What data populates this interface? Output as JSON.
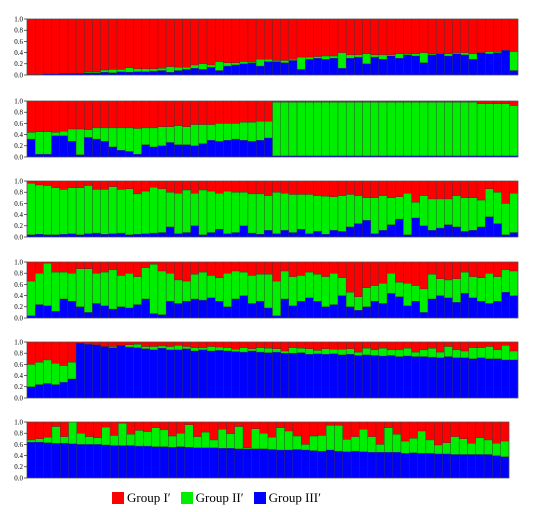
{
  "chart_data": {
    "type": "bar",
    "stacked": true,
    "normalized": true,
    "ylim": [
      0,
      1
    ],
    "yticks": [
      "0.0",
      "0.2",
      "0.4",
      "0.6",
      "0.8",
      "1.0"
    ],
    "colors": {
      "blue": "#0000ff",
      "green": "#00ee00",
      "red": "#ff0000"
    },
    "legend": [
      {
        "label": "Group I′",
        "color": "#ff0000"
      },
      {
        "label": "Group II′",
        "color": "#00ee00"
      },
      {
        "label": "Group III′",
        "color": "#0000ff"
      }
    ],
    "series_order": [
      "blue",
      "green",
      "red"
    ],
    "panels": [
      {
        "blue": [
          0.01,
          0.01,
          0.02,
          0.02,
          0.03,
          0.03,
          0.03,
          0.04,
          0.04,
          0.05,
          0.04,
          0.06,
          0.05,
          0.06,
          0.06,
          0.07,
          0.08,
          0.05,
          0.08,
          0.1,
          0.12,
          0.1,
          0.14,
          0.08,
          0.16,
          0.18,
          0.2,
          0.22,
          0.16,
          0.24,
          0.24,
          0.22,
          0.26,
          0.1,
          0.28,
          0.3,
          0.28,
          0.3,
          0.12,
          0.3,
          0.32,
          0.2,
          0.32,
          0.28,
          0.34,
          0.3,
          0.36,
          0.34,
          0.22,
          0.36,
          0.38,
          0.34,
          0.38,
          0.36,
          0.28,
          0.4,
          0.38,
          0.4,
          0.44,
          0.08
        ],
        "green": [
          0.0,
          0.0,
          0.0,
          0.0,
          0.0,
          0.0,
          0.0,
          0.02,
          0.02,
          0.04,
          0.06,
          0.04,
          0.08,
          0.05,
          0.05,
          0.04,
          0.04,
          0.1,
          0.06,
          0.04,
          0.06,
          0.1,
          0.04,
          0.16,
          0.06,
          0.04,
          0.04,
          0.02,
          0.12,
          0.04,
          0.02,
          0.04,
          0.02,
          0.22,
          0.04,
          0.03,
          0.06,
          0.04,
          0.28,
          0.06,
          0.04,
          0.18,
          0.04,
          0.08,
          0.02,
          0.08,
          0.02,
          0.04,
          0.18,
          0.02,
          0.0,
          0.04,
          0.02,
          0.04,
          0.1,
          0.0,
          0.04,
          0.02,
          0.0,
          0.34
        ]
      },
      {
        "blue": [
          0.32,
          0.05,
          0.05,
          0.38,
          0.38,
          0.28,
          0.04,
          0.35,
          0.32,
          0.28,
          0.18,
          0.12,
          0.1,
          0.05,
          0.22,
          0.18,
          0.2,
          0.26,
          0.22,
          0.22,
          0.2,
          0.24,
          0.3,
          0.28,
          0.3,
          0.32,
          0.3,
          0.28,
          0.3,
          0.34,
          0.02,
          0.02,
          0.02,
          0.02,
          0.02,
          0.02,
          0.02,
          0.02,
          0.02,
          0.02,
          0.02,
          0.02,
          0.02,
          0.02,
          0.02,
          0.02,
          0.02,
          0.02,
          0.02,
          0.02,
          0.02,
          0.02,
          0.02,
          0.02,
          0.02,
          0.02,
          0.02,
          0.02,
          0.02,
          0.02
        ],
        "green": [
          0.12,
          0.4,
          0.4,
          0.06,
          0.08,
          0.22,
          0.46,
          0.14,
          0.2,
          0.24,
          0.34,
          0.4,
          0.42,
          0.46,
          0.3,
          0.34,
          0.34,
          0.28,
          0.34,
          0.32,
          0.38,
          0.34,
          0.28,
          0.32,
          0.3,
          0.28,
          0.32,
          0.34,
          0.34,
          0.3,
          0.96,
          0.96,
          0.96,
          0.96,
          0.96,
          0.96,
          0.96,
          0.96,
          0.96,
          0.96,
          0.96,
          0.96,
          0.96,
          0.96,
          0.96,
          0.96,
          0.96,
          0.96,
          0.96,
          0.96,
          0.96,
          0.96,
          0.96,
          0.96,
          0.96,
          0.93,
          0.93,
          0.93,
          0.93,
          0.9
        ]
      },
      {
        "blue": [
          0.04,
          0.05,
          0.04,
          0.04,
          0.05,
          0.06,
          0.04,
          0.06,
          0.07,
          0.05,
          0.06,
          0.07,
          0.04,
          0.05,
          0.06,
          0.07,
          0.08,
          0.18,
          0.06,
          0.08,
          0.2,
          0.04,
          0.08,
          0.14,
          0.06,
          0.08,
          0.2,
          0.07,
          0.05,
          0.12,
          0.06,
          0.12,
          0.08,
          0.14,
          0.06,
          0.1,
          0.05,
          0.12,
          0.1,
          0.18,
          0.24,
          0.3,
          0.06,
          0.12,
          0.22,
          0.32,
          0.04,
          0.34,
          0.2,
          0.12,
          0.16,
          0.22,
          0.18,
          0.1,
          0.12,
          0.18,
          0.36,
          0.24,
          0.04,
          0.08
        ],
        "green": [
          0.92,
          0.88,
          0.88,
          0.84,
          0.8,
          0.82,
          0.84,
          0.86,
          0.78,
          0.8,
          0.84,
          0.78,
          0.82,
          0.72,
          0.76,
          0.82,
          0.78,
          0.62,
          0.72,
          0.76,
          0.58,
          0.8,
          0.74,
          0.64,
          0.76,
          0.72,
          0.6,
          0.7,
          0.72,
          0.62,
          0.74,
          0.66,
          0.68,
          0.62,
          0.7,
          0.64,
          0.68,
          0.6,
          0.64,
          0.58,
          0.5,
          0.4,
          0.64,
          0.62,
          0.48,
          0.4,
          0.74,
          0.28,
          0.54,
          0.56,
          0.52,
          0.46,
          0.56,
          0.6,
          0.58,
          0.48,
          0.5,
          0.56,
          0.56,
          0.7
        ]
      },
      {
        "blue": [
          0.04,
          0.24,
          0.22,
          0.12,
          0.34,
          0.3,
          0.2,
          0.1,
          0.26,
          0.22,
          0.16,
          0.2,
          0.18,
          0.24,
          0.34,
          0.08,
          0.06,
          0.3,
          0.26,
          0.3,
          0.34,
          0.32,
          0.36,
          0.3,
          0.2,
          0.34,
          0.4,
          0.26,
          0.3,
          0.18,
          0.04,
          0.34,
          0.22,
          0.3,
          0.36,
          0.3,
          0.2,
          0.24,
          0.4,
          0.2,
          0.14,
          0.2,
          0.3,
          0.26,
          0.44,
          0.38,
          0.22,
          0.3,
          0.1,
          0.34,
          0.4,
          0.36,
          0.28,
          0.44,
          0.36,
          0.3,
          0.26,
          0.3,
          0.46,
          0.4
        ],
        "green": [
          0.62,
          0.56,
          0.76,
          0.7,
          0.48,
          0.5,
          0.68,
          0.78,
          0.54,
          0.6,
          0.7,
          0.56,
          0.62,
          0.5,
          0.56,
          0.88,
          0.78,
          0.5,
          0.42,
          0.36,
          0.44,
          0.5,
          0.4,
          0.42,
          0.6,
          0.5,
          0.42,
          0.5,
          0.48,
          0.6,
          0.62,
          0.5,
          0.52,
          0.46,
          0.46,
          0.48,
          0.54,
          0.56,
          0.32,
          0.26,
          0.24,
          0.34,
          0.28,
          0.36,
          0.36,
          0.26,
          0.4,
          0.28,
          0.42,
          0.44,
          0.3,
          0.32,
          0.42,
          0.38,
          0.38,
          0.42,
          0.54,
          0.44,
          0.4,
          0.44
        ]
      },
      {
        "blue": [
          0.2,
          0.24,
          0.26,
          0.24,
          0.28,
          0.34,
          0.98,
          0.96,
          0.95,
          0.92,
          0.9,
          0.94,
          0.91,
          0.9,
          0.88,
          0.86,
          0.89,
          0.86,
          0.86,
          0.88,
          0.84,
          0.86,
          0.84,
          0.85,
          0.84,
          0.83,
          0.82,
          0.84,
          0.82,
          0.81,
          0.82,
          0.8,
          0.8,
          0.81,
          0.78,
          0.79,
          0.78,
          0.79,
          0.77,
          0.78,
          0.76,
          0.77,
          0.76,
          0.75,
          0.76,
          0.74,
          0.75,
          0.74,
          0.74,
          0.73,
          0.72,
          0.74,
          0.72,
          0.72,
          0.7,
          0.72,
          0.7,
          0.7,
          0.68,
          0.68
        ],
        "green": [
          0.4,
          0.4,
          0.42,
          0.38,
          0.3,
          0.3,
          0.0,
          0.0,
          0.0,
          0.0,
          0.02,
          0.0,
          0.04,
          0.06,
          0.04,
          0.06,
          0.04,
          0.06,
          0.08,
          0.04,
          0.06,
          0.04,
          0.08,
          0.06,
          0.06,
          0.04,
          0.08,
          0.04,
          0.08,
          0.08,
          0.06,
          0.04,
          0.1,
          0.08,
          0.1,
          0.06,
          0.1,
          0.08,
          0.1,
          0.1,
          0.06,
          0.12,
          0.1,
          0.14,
          0.1,
          0.12,
          0.14,
          0.08,
          0.12,
          0.16,
          0.1,
          0.18,
          0.14,
          0.12,
          0.2,
          0.18,
          0.22,
          0.16,
          0.26,
          0.16
        ]
      },
      {
        "blue": [
          0.64,
          0.64,
          0.63,
          0.62,
          0.62,
          0.61,
          0.6,
          0.6,
          0.6,
          0.59,
          0.58,
          0.58,
          0.58,
          0.57,
          0.57,
          0.56,
          0.56,
          0.55,
          0.56,
          0.55,
          0.54,
          0.54,
          0.54,
          0.53,
          0.53,
          0.52,
          0.52,
          0.52,
          0.52,
          0.51,
          0.5,
          0.5,
          0.51,
          0.5,
          0.49,
          0.48,
          0.5,
          0.48,
          0.47,
          0.48,
          0.47,
          0.46,
          0.46,
          0.46,
          0.46,
          0.44,
          0.45,
          0.44,
          0.44,
          0.43,
          0.43,
          0.42,
          0.42,
          0.42,
          0.42,
          0.42,
          0.4,
          0.38
        ],
        "green": [
          0.04,
          0.06,
          0.1,
          0.3,
          0.12,
          0.4,
          0.2,
          0.14,
          0.12,
          0.32,
          0.18,
          0.4,
          0.2,
          0.28,
          0.26,
          0.34,
          0.3,
          0.2,
          0.24,
          0.4,
          0.2,
          0.28,
          0.14,
          0.34,
          0.26,
          0.4,
          0.02,
          0.36,
          0.28,
          0.22,
          0.4,
          0.34,
          0.24,
          0.1,
          0.26,
          0.28,
          0.44,
          0.46,
          0.22,
          0.26,
          0.4,
          0.28,
          0.14,
          0.44,
          0.32,
          0.22,
          0.26,
          0.4,
          0.24,
          0.16,
          0.2,
          0.32,
          0.28,
          0.2,
          0.3,
          0.26,
          0.22,
          0.28
        ]
      }
    ]
  }
}
